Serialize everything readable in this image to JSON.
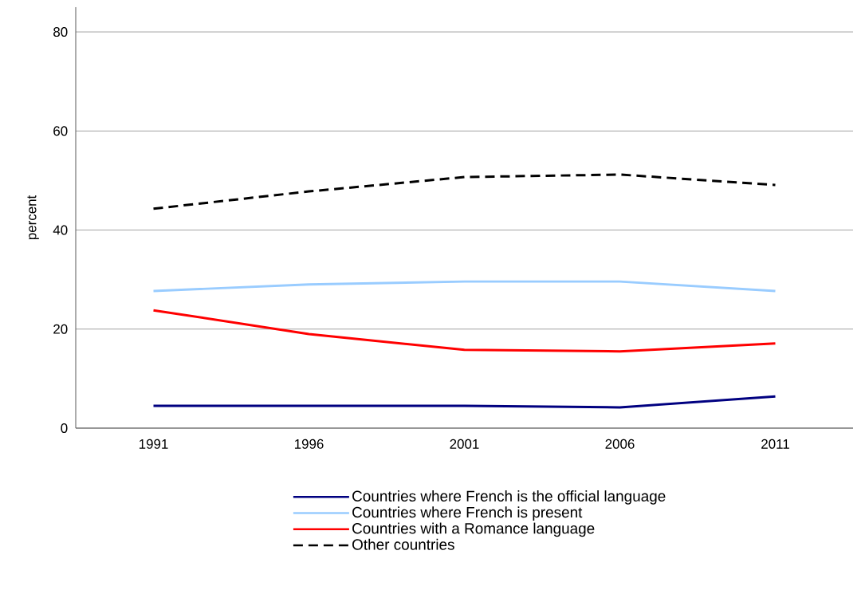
{
  "chart_data": {
    "type": "line",
    "ylabel": "percent",
    "categories": [
      "1991",
      "1996",
      "2001",
      "2006",
      "2011"
    ],
    "series": [
      {
        "name": "Countries where French is the official language",
        "color": "#000080",
        "values": [
          4.5,
          4.5,
          4.5,
          4.2,
          6.4
        ]
      },
      {
        "name": "Countries where French is present",
        "color": "#99ccff",
        "values": [
          27.7,
          29.0,
          29.6,
          29.6,
          27.7
        ]
      },
      {
        "name": "Countries with a Romance language",
        "color": "#ff0000",
        "values": [
          23.8,
          19.0,
          15.8,
          15.5,
          17.1
        ]
      },
      {
        "name": "Other countries",
        "color": "#000000",
        "values": [
          44.3,
          47.8,
          50.7,
          51.2,
          49.1
        ],
        "line_style": "dashed"
      }
    ],
    "ylim": [
      0,
      85
    ],
    "yticks": [
      0,
      20,
      40,
      60,
      80
    ],
    "grid": "y",
    "legend": "bottom"
  }
}
